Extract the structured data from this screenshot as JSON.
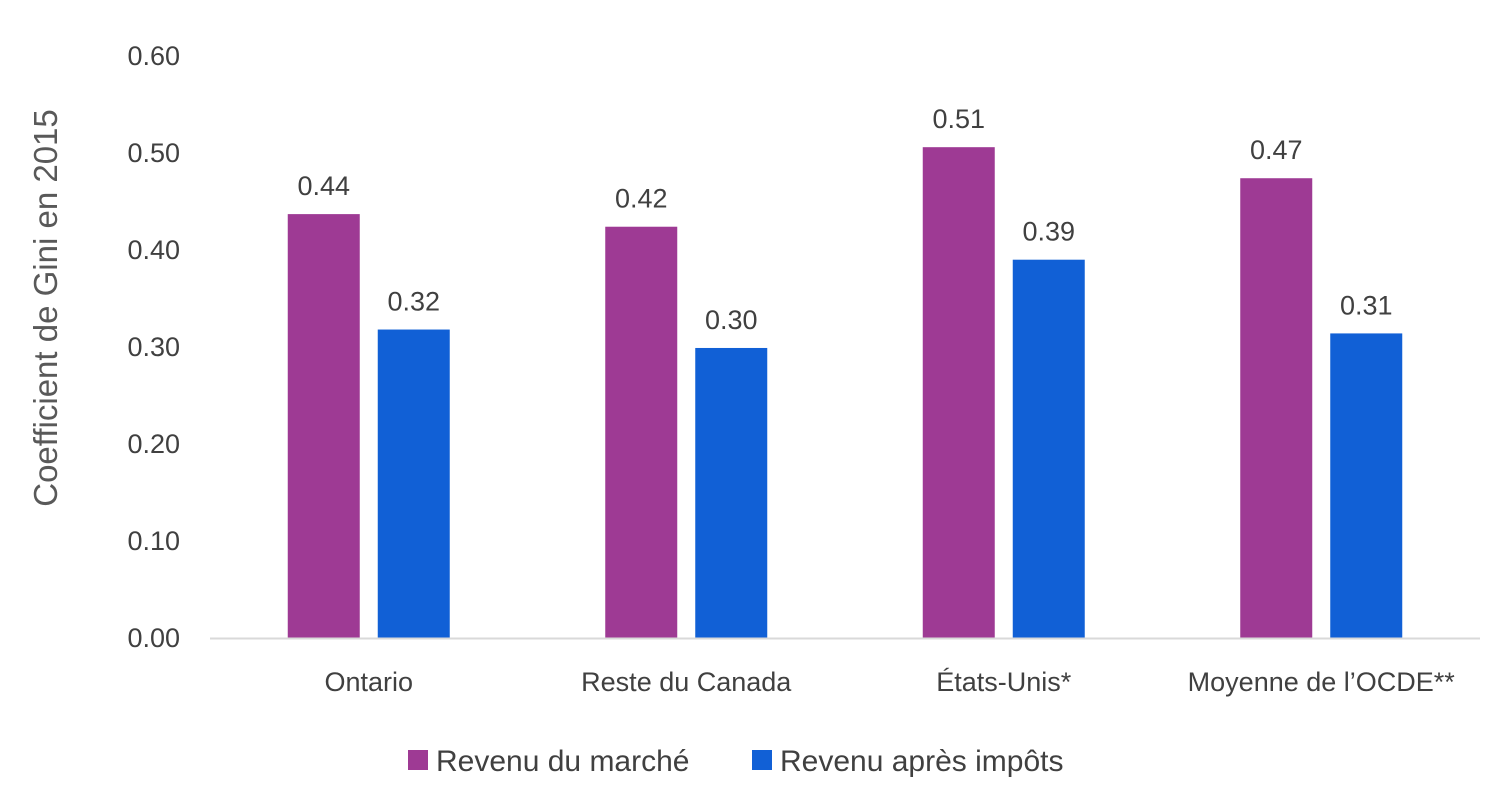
{
  "chart_data": {
    "type": "bar",
    "title": "",
    "xlabel": "",
    "ylabel": "Coefficient de Gini en 2015",
    "ylim": [
      0,
      0.6
    ],
    "yticks": [
      "0.00",
      "0.10",
      "0.20",
      "0.30",
      "0.40",
      "0.50",
      "0.60"
    ],
    "grid": false,
    "legend_position": "bottom",
    "categories": [
      "Ontario",
      "Reste du Canada",
      "États-Unis*",
      "Moyenne de l’OCDE**"
    ],
    "series": [
      {
        "name": "Revenu du marché",
        "color": "#9E3A94",
        "values": [
          0.437,
          0.424,
          0.506,
          0.474
        ],
        "labels": [
          "0.44",
          "0.42",
          "0.51",
          "0.47"
        ]
      },
      {
        "name": "Revenu après impôts",
        "color": "#1160D6",
        "values": [
          0.318,
          0.299,
          0.39,
          0.314
        ],
        "labels": [
          "0.32",
          "0.30",
          "0.39",
          "0.31"
        ]
      }
    ]
  }
}
